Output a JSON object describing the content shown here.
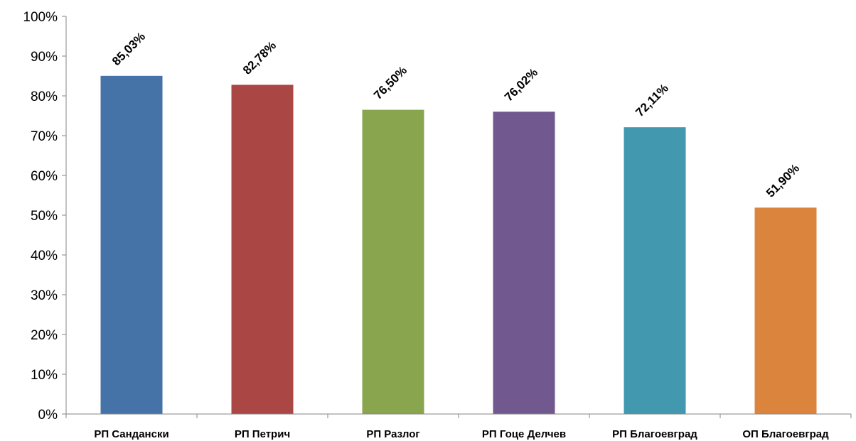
{
  "chart_data": {
    "type": "bar",
    "title": "",
    "xlabel": "",
    "ylabel": "",
    "ylim": [
      0,
      100
    ],
    "y_ticks": [
      "0%",
      "10%",
      "20%",
      "30%",
      "40%",
      "50%",
      "60%",
      "70%",
      "80%",
      "90%",
      "100%"
    ],
    "grid": false,
    "legend": "none",
    "categories": [
      "РП Сандански",
      "РП Петрич",
      "РП Разлог",
      "РП Гоце Делчев",
      "РП Благоевград",
      "ОП Благоевград"
    ],
    "values": [
      85.03,
      82.78,
      76.5,
      76.02,
      72.11,
      51.9
    ],
    "data_labels": [
      "85,03%",
      "82,78%",
      "76,50%",
      "76,02%",
      "72,11%",
      "51,90%"
    ],
    "colors": [
      "#4572A7",
      "#AA4643",
      "#89A54E",
      "#71588F",
      "#4198AF",
      "#DB843D"
    ]
  }
}
